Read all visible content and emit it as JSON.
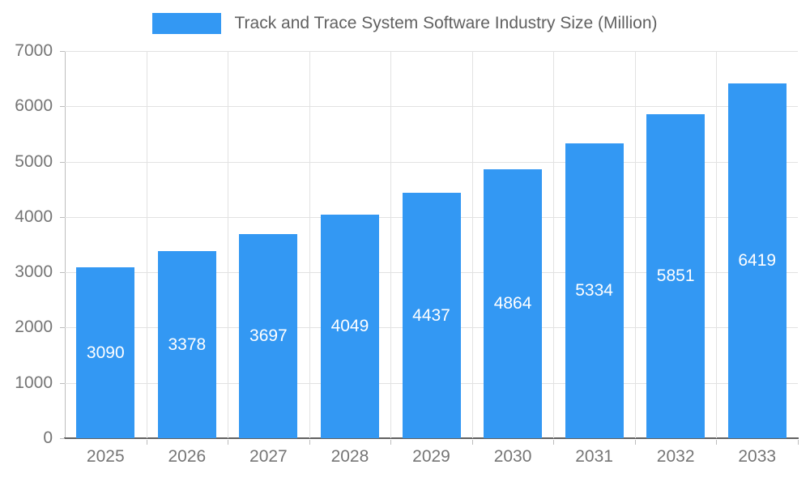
{
  "legend": {
    "label": "Track and Trace System Software Industry Size (Million)"
  },
  "chart_data": {
    "type": "bar",
    "title": "Track and Trace System Software Industry Size (Million)",
    "categories": [
      "2025",
      "2026",
      "2027",
      "2028",
      "2029",
      "2030",
      "2031",
      "2032",
      "2033"
    ],
    "values": [
      3090,
      3378,
      3697,
      4049,
      4437,
      4864,
      5334,
      5851,
      6419
    ],
    "xlabel": "",
    "ylabel": "",
    "ylim": [
      0,
      7000
    ],
    "yticks": [
      0,
      1000,
      2000,
      3000,
      4000,
      5000,
      6000,
      7000
    ],
    "grid": true,
    "legend_position": "top",
    "bar_color": "#3398F3",
    "bar_label_color": "#ffffff",
    "axis_text_color": "#757575",
    "gridline_color": "#e2e2e2"
  }
}
